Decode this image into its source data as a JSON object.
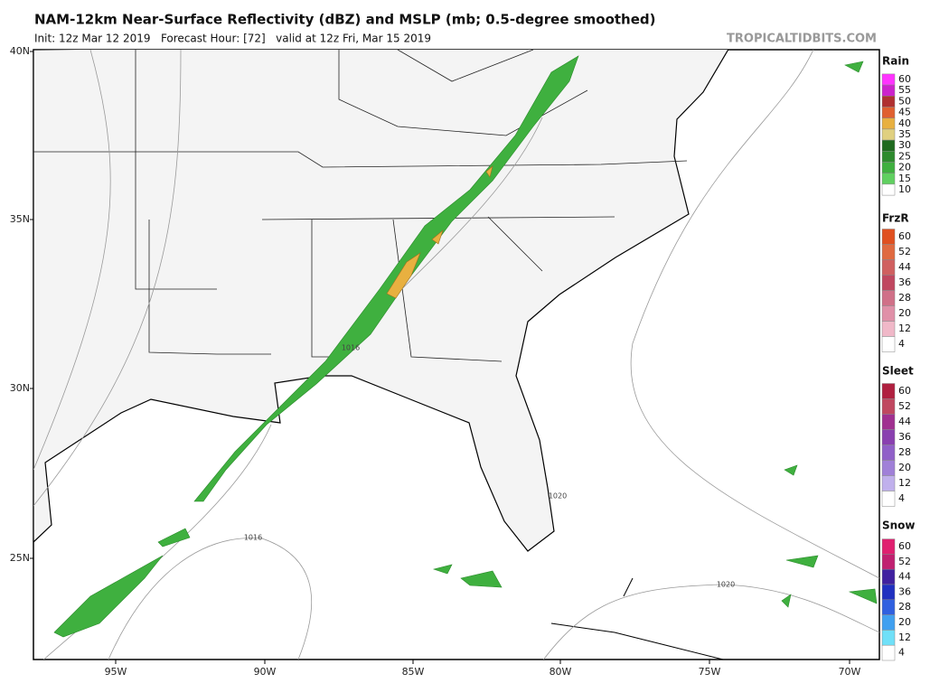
{
  "header": {
    "title": "NAM-12km Near-Surface Reflectivity (dBZ) and MSLP (mb; 0.5-degree smoothed)",
    "subtitle": "Init: 12z Mar 12 2019   Forecast Hour: [72]   valid at 12z Fri, Mar 15 2019",
    "credit": "TROPICALTIDBITS.COM"
  },
  "map": {
    "lat_labels": [
      "40N",
      "35N",
      "30N",
      "25N"
    ],
    "lon_labels": [
      "95W",
      "90W",
      "85W",
      "80W",
      "75W",
      "70W"
    ],
    "isobar_labels": [
      "1016",
      "1020",
      "1016",
      "1020"
    ]
  },
  "legends": [
    {
      "title": "Rain",
      "labels": [
        "60",
        "55",
        "50",
        "45",
        "40",
        "35",
        "30",
        "25",
        "20",
        "15",
        "10"
      ],
      "colors": [
        "#ff33ff",
        "#cc22cc",
        "#b03030",
        "#e06030",
        "#e8b040",
        "#e0d080",
        "#1f6b1f",
        "#2e8b2e",
        "#3fb03f",
        "#60d060",
        "#ffffff"
      ]
    },
    {
      "title": "FrzR",
      "labels": [
        "60",
        "52",
        "44",
        "36",
        "28",
        "20",
        "12",
        "4"
      ],
      "colors": [
        "#e05020",
        "#e06a40",
        "#d06060",
        "#c04860",
        "#d07088",
        "#e090a8",
        "#f0b8c8",
        "#ffffff"
      ]
    },
    {
      "title": "Sleet",
      "labels": [
        "60",
        "52",
        "44",
        "36",
        "28",
        "20",
        "12",
        "4"
      ],
      "colors": [
        "#b02040",
        "#c04860",
        "#a03090",
        "#8a40b0",
        "#9060c8",
        "#a080d8",
        "#c0b0ec",
        "#ffffff"
      ]
    },
    {
      "title": "Snow",
      "labels": [
        "60",
        "52",
        "44",
        "36",
        "28",
        "20",
        "12",
        "4"
      ],
      "colors": [
        "#e02070",
        "#c02070",
        "#4020a0",
        "#2030c0",
        "#3060e0",
        "#40a0f0",
        "#70e0f8",
        "#ffffff"
      ]
    }
  ]
}
